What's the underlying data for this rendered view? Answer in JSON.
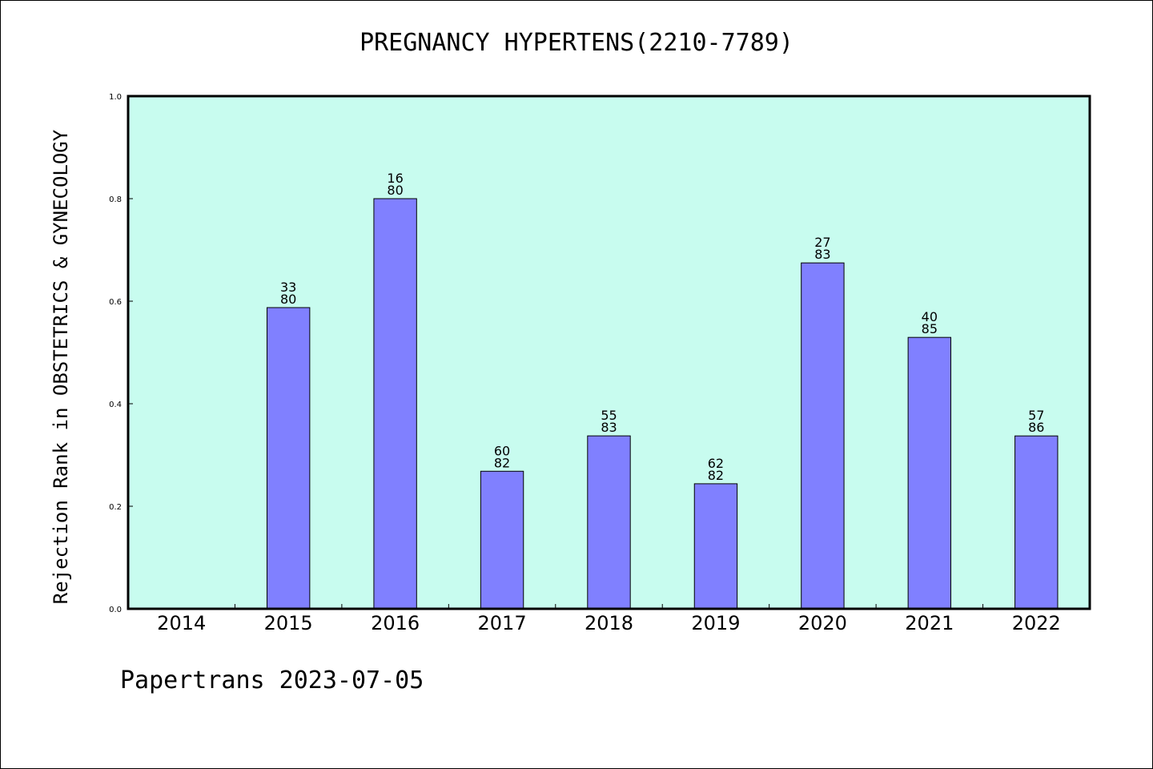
{
  "chart_data": {
    "type": "bar",
    "title": "PREGNANCY HYPERTENS(2210-7789)",
    "ylabel": "Rejection Rank in OBSTETRICS & GYNECOLOGY",
    "xlabel": "",
    "ylim": [
      0,
      1
    ],
    "yticks": [
      "0.0",
      "0.2",
      "0.4",
      "0.6",
      "0.8",
      "1.0"
    ],
    "categories": [
      "2014",
      "2015",
      "2016",
      "2017",
      "2018",
      "2019",
      "2020",
      "2021",
      "2022"
    ],
    "values": [
      null,
      0.5875,
      0.8,
      0.2683,
      0.3373,
      0.2439,
      0.6747,
      0.5294,
      0.3372
    ],
    "bar_labels": [
      null,
      [
        "33",
        "80"
      ],
      [
        "16",
        "80"
      ],
      [
        "60",
        "82"
      ],
      [
        "55",
        "83"
      ],
      [
        "62",
        "82"
      ],
      [
        "27",
        "83"
      ],
      [
        "40",
        "85"
      ],
      [
        "57",
        "86"
      ]
    ],
    "grid": false,
    "colors": {
      "plot_background": "#c8fcef",
      "bar_fill": "#8080ff",
      "bar_edge": "#000000",
      "axis": "#000000"
    }
  },
  "footer": {
    "text": "Papertrans 2023-07-05"
  }
}
